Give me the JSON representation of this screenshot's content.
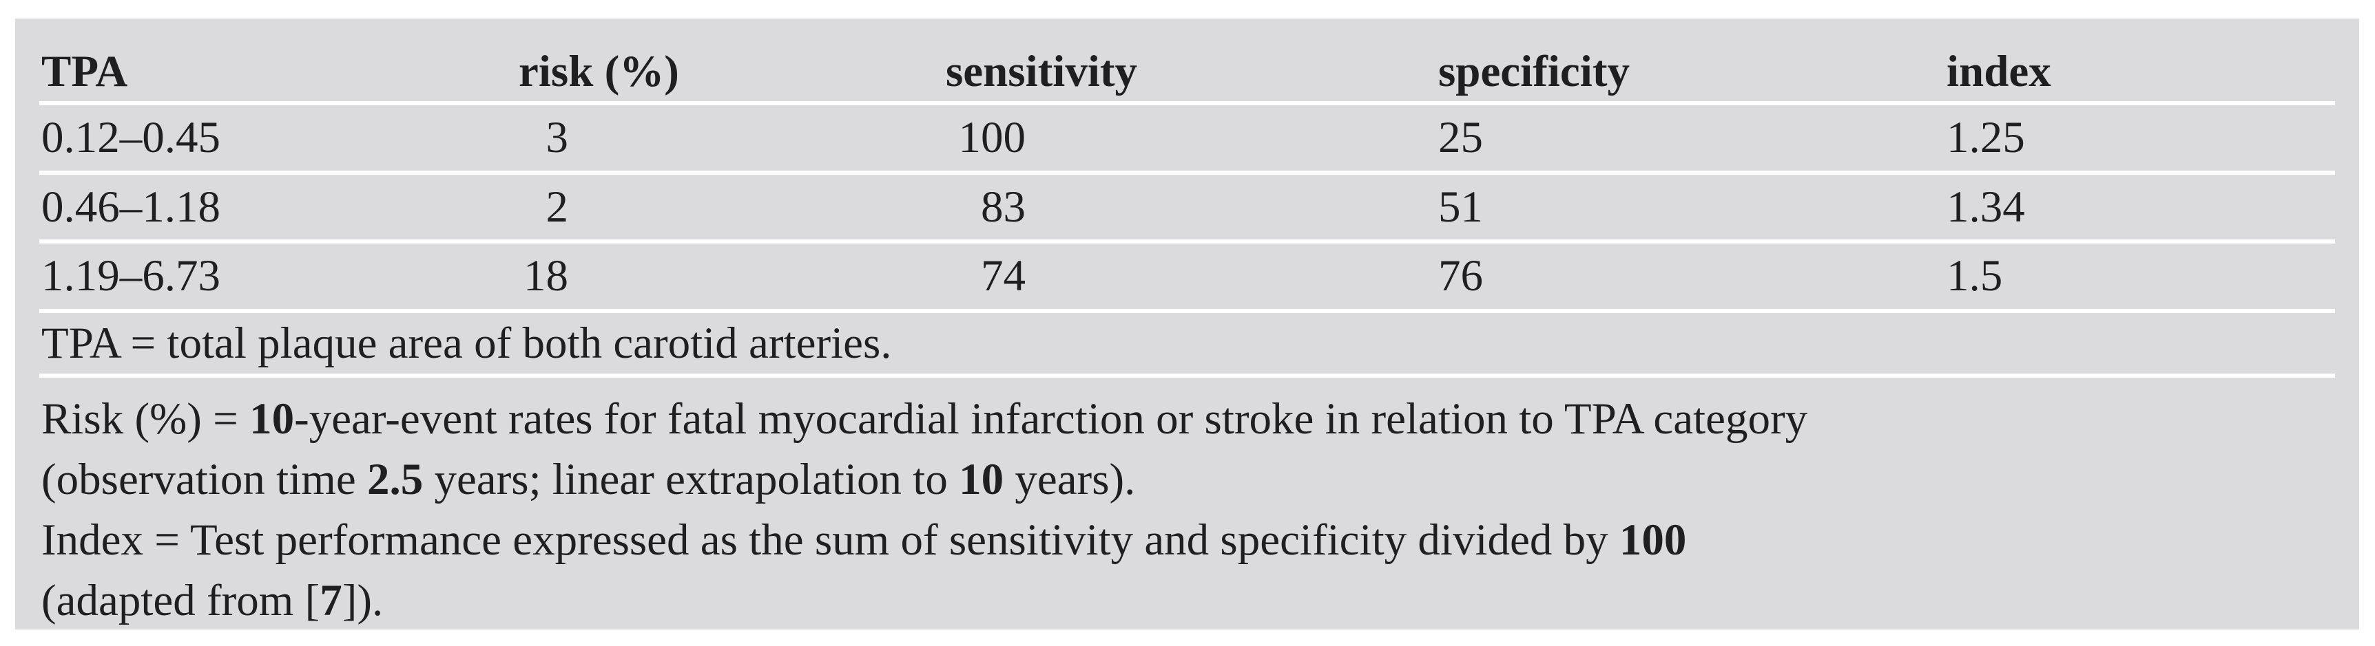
{
  "colors": {
    "panel_bg": "#dbdbdd",
    "separator": "#ffffff",
    "text": "#1f1f21",
    "page_bg": "#ffffff"
  },
  "table": {
    "columns": [
      "TPA",
      "risk (%)",
      "sensitivity",
      "specificity",
      "index"
    ],
    "rows": [
      {
        "tpa": "0.12–0.45",
        "risk": "3",
        "sensitivity": "100",
        "specificity": "25",
        "index": "1.25"
      },
      {
        "tpa": "0.46–1.18",
        "risk": "2",
        "sensitivity": "83",
        "specificity": "51",
        "index": "1.34"
      },
      {
        "tpa": "1.19–6.73",
        "risk": "18",
        "sensitivity": "74",
        "specificity": "76",
        "index": "1.5"
      }
    ]
  },
  "footnotes": {
    "tpa_line": [
      {
        "text": "TPA = total plaque area of both carotid arteries.",
        "bold": false
      }
    ],
    "lines": [
      [
        {
          "text": "Risk (%) = ",
          "bold": false
        },
        {
          "text": "10",
          "bold": true
        },
        {
          "text": "-year-event rates for fatal myocardial infarction or stroke in relation to TPA category",
          "bold": false
        }
      ],
      [
        {
          "text": "(observation time ",
          "bold": false
        },
        {
          "text": "2.5",
          "bold": true
        },
        {
          "text": " years; linear extrapolation to ",
          "bold": false
        },
        {
          "text": "10",
          "bold": true
        },
        {
          "text": " years).",
          "bold": false
        }
      ],
      [
        {
          "text": "Index = Test performance expressed as the sum of sensitivity and specificity divided by ",
          "bold": false
        },
        {
          "text": "100",
          "bold": true
        }
      ],
      [
        {
          "text": "(adapted from [",
          "bold": false
        },
        {
          "text": "7",
          "bold": true
        },
        {
          "text": "]).",
          "bold": false
        }
      ]
    ]
  }
}
